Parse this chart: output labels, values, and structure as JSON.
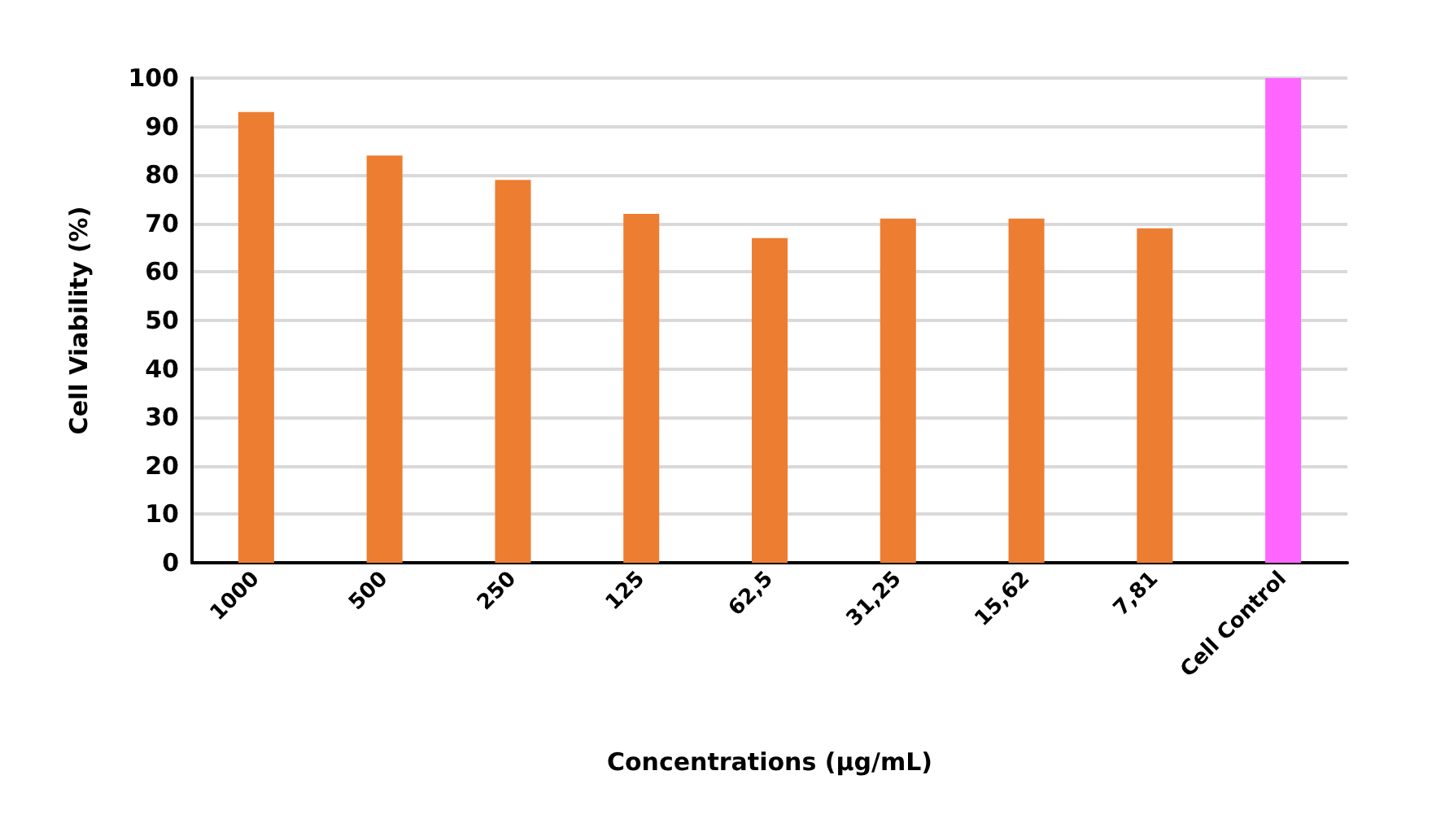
{
  "chart_data": {
    "type": "bar",
    "xlabel": "Concentrations (µg/mL)",
    "ylabel": "Cell Viability (%)",
    "categories": [
      "1000",
      "500",
      "250",
      "125",
      "62,5",
      "31,25",
      "15,62",
      "7,81",
      "Cell Control"
    ],
    "values": [
      93,
      84,
      79,
      72,
      67,
      71,
      71,
      69,
      100
    ],
    "colors": [
      "#ed7d31",
      "#ed7d31",
      "#ed7d31",
      "#ed7d31",
      "#ed7d31",
      "#ed7d31",
      "#ed7d31",
      "#ed7d31",
      "#ff66ff"
    ],
    "ylim": [
      0,
      100
    ],
    "yticks": [
      0,
      10,
      20,
      30,
      40,
      50,
      60,
      70,
      80,
      90,
      100
    ],
    "grid": "y"
  }
}
